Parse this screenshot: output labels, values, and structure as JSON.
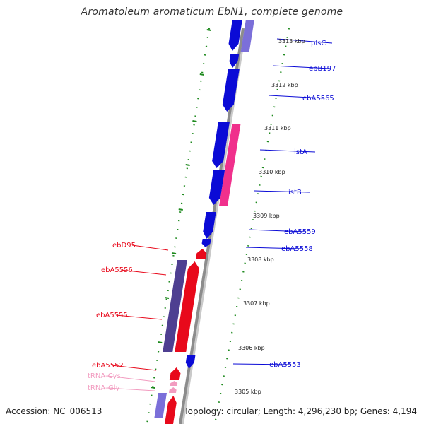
{
  "header": {
    "title": "Aromatoleum aromaticum EbN1, complete genome"
  },
  "footer": {
    "accession": "Accession: NC_006513",
    "summary": "Topology: circular; Length: 4,296,230 bp; Genes: 4,194"
  },
  "colors": {
    "forward_gene": "#0b0bd6",
    "forward_gene_alt": "#7b6fd9",
    "reverse_gene": "#e8091b",
    "reverse_gene_alt": "#4e3f91",
    "insertion": "#f0308c",
    "trna": "#f29cc0",
    "backbone": "#8c8c8c",
    "ruler": "#1e8a1e"
  },
  "ticks": [
    {
      "label": "3313 kbp"
    },
    {
      "label": "3312 kbp"
    },
    {
      "label": "3311 kbp"
    },
    {
      "label": "3310 kbp"
    },
    {
      "label": "3309 kbp"
    },
    {
      "label": "3308 kbp"
    },
    {
      "label": "3307 kbp"
    },
    {
      "label": "3306 kbp"
    },
    {
      "label": "3305 kbp"
    }
  ],
  "genes_right": [
    {
      "name": "plsC"
    },
    {
      "name": "ebB197"
    },
    {
      "name": "ebA5565"
    },
    {
      "name": "istA"
    },
    {
      "name": "istB"
    },
    {
      "name": "ebA5559"
    },
    {
      "name": "ebA5558"
    },
    {
      "name": "ebA5553"
    }
  ],
  "genes_left": [
    {
      "name": "ebD95"
    },
    {
      "name": "ebA5556"
    },
    {
      "name": "ebA5555"
    },
    {
      "name": "ebA5552"
    },
    {
      "name": "tRNA-Cys"
    },
    {
      "name": "tRNA-Gly"
    }
  ]
}
